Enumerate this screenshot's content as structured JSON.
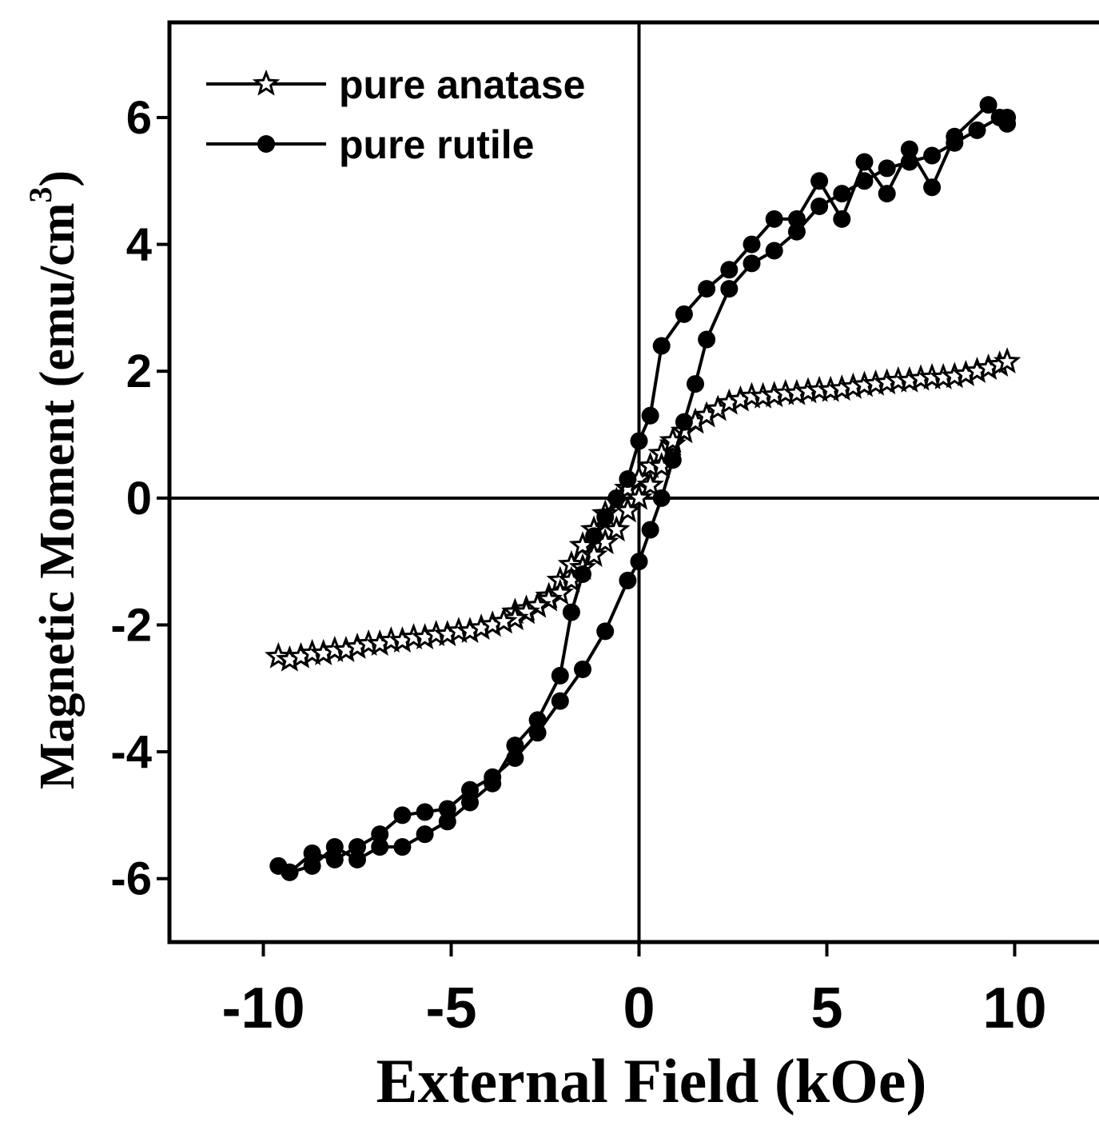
{
  "chart_data": {
    "type": "line",
    "title": "",
    "xlabel": "External Field (kOe)",
    "ylabel_main": "Magnetic Moment (emu/cm",
    "ylabel_sup": "3",
    "ylabel_tail": ")",
    "xlim": [
      -12.5,
      12.5
    ],
    "ylim": [
      -7,
      7.5
    ],
    "xticks": [
      -10,
      -5,
      0,
      5,
      10
    ],
    "yticks": [
      -6,
      -4,
      -2,
      0,
      2,
      4,
      6
    ],
    "xtick_labels": [
      "-10",
      "-5",
      "0",
      "5",
      "10"
    ],
    "ytick_labels": [
      "-6",
      "-4",
      "-2",
      "0",
      "2",
      "4",
      "6"
    ],
    "zero_lines": true,
    "grid": false,
    "legend_position": "top-left",
    "colors": {
      "line": "#000000",
      "background": "#ffffff"
    },
    "series": [
      {
        "name": "pure anatase",
        "marker": "star",
        "x": [
          -9.6,
          -9.3,
          -9.0,
          -8.7,
          -8.4,
          -8.1,
          -7.8,
          -7.5,
          -7.2,
          -6.9,
          -6.6,
          -6.3,
          -6.0,
          -5.7,
          -5.4,
          -5.1,
          -4.8,
          -4.5,
          -4.2,
          -3.9,
          -3.6,
          -3.3,
          -3.0,
          -2.7,
          -2.4,
          -2.1,
          -1.8,
          -1.5,
          -1.2,
          -0.9,
          -0.6,
          -0.3,
          0.0,
          0.3,
          0.6,
          0.9,
          1.2,
          1.5,
          1.8,
          2.1,
          2.4,
          2.7,
          3.0,
          3.3,
          3.6,
          3.9,
          4.2,
          4.5,
          4.8,
          5.1,
          5.4,
          5.7,
          6.0,
          6.3,
          6.6,
          6.9,
          7.2,
          7.5,
          7.8,
          8.1,
          8.4,
          8.7,
          9.0,
          9.3,
          9.6,
          9.8
        ],
        "y": [
          -2.5,
          -2.55,
          -2.5,
          -2.45,
          -2.45,
          -2.4,
          -2.4,
          -2.35,
          -2.3,
          -2.3,
          -2.25,
          -2.25,
          -2.2,
          -2.2,
          -2.15,
          -2.15,
          -2.1,
          -2.1,
          -2.05,
          -2.0,
          -1.95,
          -1.8,
          -1.75,
          -1.7,
          -1.55,
          -1.3,
          -1.05,
          -0.75,
          -0.5,
          -0.25,
          -0.05,
          0.15,
          0.3,
          0.5,
          0.7,
          0.85,
          1.05,
          1.2,
          1.3,
          1.4,
          1.5,
          1.55,
          1.6,
          1.6,
          1.62,
          1.65,
          1.65,
          1.68,
          1.7,
          1.7,
          1.72,
          1.75,
          1.78,
          1.8,
          1.82,
          1.85,
          1.85,
          1.88,
          1.9,
          1.9,
          1.92,
          1.95,
          2.0,
          2.05,
          2.1,
          2.15
        ]
      },
      {
        "name": "pure rutile",
        "marker": "circle",
        "x": [
          -9.6,
          -9.3,
          -8.7,
          -8.1,
          -7.5,
          -6.9,
          -6.3,
          -5.7,
          -5.1,
          -4.5,
          -3.9,
          -3.3,
          -2.7,
          -2.1,
          -1.5,
          -0.9,
          -0.3,
          0.0,
          0.3,
          0.6,
          0.9,
          1.2,
          1.5,
          1.8,
          2.4,
          3.0,
          3.6,
          4.2,
          4.8,
          5.4,
          6.0,
          6.6,
          7.2,
          7.8,
          8.4,
          9.0,
          9.6,
          9.8
        ],
        "y": [
          -5.8,
          -5.9,
          -5.6,
          -5.7,
          -5.5,
          -5.3,
          -5.0,
          -4.95,
          -4.9,
          -4.6,
          -4.4,
          -4.1,
          -3.7,
          -3.2,
          -2.7,
          -2.1,
          -1.3,
          -1.0,
          -0.5,
          0.0,
          0.6,
          1.2,
          1.8,
          2.5,
          3.3,
          3.7,
          3.9,
          4.2,
          4.6,
          4.8,
          5.0,
          5.2,
          5.3,
          5.4,
          5.6,
          5.8,
          6.0,
          6.0
        ]
      }
    ],
    "series_upper_branches": [
      {
        "name": "pure anatase",
        "x": [
          0.9,
          0.6,
          0.3,
          0.0,
          -0.3,
          -0.6,
          -0.9,
          -1.2,
          -1.5,
          -1.8,
          -2.1,
          -2.4,
          -2.7,
          -3.0,
          -3.3,
          -3.6
        ],
        "y": [
          0.9,
          0.5,
          0.2,
          0.0,
          -0.2,
          -0.5,
          -0.7,
          -0.9,
          -1.1,
          -1.3,
          -1.5,
          -1.6,
          -1.7,
          -1.8,
          -1.9,
          -1.95
        ]
      },
      {
        "name": "pure rutile",
        "x": [
          9.8,
          9.3,
          8.4,
          7.8,
          7.2,
          6.6,
          6.0,
          5.4,
          4.8,
          4.2,
          3.6,
          3.0,
          2.4,
          1.8,
          1.2,
          0.6,
          0.3,
          0.0,
          -0.3,
          -0.6,
          -0.9,
          -1.2,
          -1.5,
          -1.8,
          -2.1,
          -2.7,
          -3.3,
          -3.9,
          -4.5,
          -5.1,
          -5.7,
          -6.3,
          -6.9,
          -7.5,
          -8.1,
          -8.7,
          -9.3
        ],
        "y": [
          5.9,
          6.2,
          5.7,
          4.9,
          5.5,
          4.8,
          5.3,
          4.4,
          5.0,
          4.4,
          4.4,
          4.0,
          3.6,
          3.3,
          2.9,
          2.4,
          1.3,
          0.9,
          0.3,
          0.0,
          -0.3,
          -0.6,
          -1.2,
          -1.8,
          -2.8,
          -3.5,
          -3.9,
          -4.5,
          -4.8,
          -5.1,
          -5.3,
          -5.5,
          -5.5,
          -5.7,
          -5.5,
          -5.8,
          -5.9
        ]
      }
    ]
  }
}
